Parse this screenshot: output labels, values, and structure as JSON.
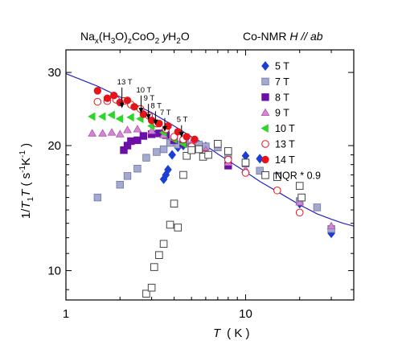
{
  "chart_data": {
    "type": "scatter",
    "title_formula": {
      "parts": [
        "Na",
        "x",
        "(H",
        "3",
        "O)",
        "z",
        "CoO",
        "2",
        " yH",
        "2",
        "O"
      ],
      "roles": [
        "n",
        "sub",
        "n",
        "sub",
        "n",
        "sub",
        "n",
        "sub",
        "n",
        "sub",
        "n"
      ]
    },
    "subtitle_main": "Co-NMR  ",
    "subtitle_field": "H // ab",
    "xlabel_var": "T",
    "xlabel_unit": "( K )",
    "ylabel_parts": {
      "prefix": "1/",
      "T": "T",
      "one": "1",
      "T2": "T",
      "open": " ( s",
      "exp1": "-1",
      "K": "K",
      "exp2": "-1",
      "close": " )"
    },
    "x_scale": "log",
    "y_scale": "log",
    "xlim": [
      1,
      40
    ],
    "ylim": [
      8.5,
      34
    ],
    "x_ticks": [
      1,
      10
    ],
    "x_tick_labels": [
      "1",
      "10"
    ],
    "y_ticks": [
      10,
      20,
      30
    ],
    "y_tick_labels": [
      "10",
      "20",
      "30"
    ],
    "legend_position": "top-right",
    "series": [
      {
        "name": "5 T",
        "marker": "diamond",
        "color": "#1a3fd6",
        "filled": true,
        "points": [
          [
            3.5,
            16.6
          ],
          [
            3.6,
            17.0
          ],
          [
            3.7,
            17.5
          ],
          [
            3.9,
            19.0
          ],
          [
            4.2,
            19.8
          ],
          [
            4.5,
            20.0
          ],
          [
            5.0,
            20.0
          ],
          [
            5.5,
            20.1
          ],
          [
            6.0,
            19.9
          ],
          [
            10.0,
            18.9
          ],
          [
            12.0,
            18.6
          ],
          [
            20.0,
            14.5
          ],
          [
            30.0,
            12.3
          ]
        ]
      },
      {
        "name": "7 T",
        "marker": "square",
        "color": "#a3a9cf",
        "edge": "#6f76a8",
        "filled": true,
        "points": [
          [
            1.5,
            15.0
          ],
          [
            2.0,
            16.1
          ],
          [
            2.2,
            16.9
          ],
          [
            2.5,
            17.6
          ],
          [
            2.8,
            18.7
          ],
          [
            3.2,
            19.3
          ],
          [
            3.5,
            19.6
          ],
          [
            3.8,
            20.3
          ],
          [
            4.2,
            20.1
          ],
          [
            4.6,
            20.4
          ],
          [
            5.0,
            19.9
          ],
          [
            5.5,
            20.1
          ],
          [
            6.0,
            19.9
          ],
          [
            7.0,
            19.8
          ],
          [
            8.0,
            18.8
          ],
          [
            10.0,
            18.1
          ],
          [
            12.0,
            17.4
          ],
          [
            15.0,
            16.9
          ],
          [
            20.0,
            14.7
          ],
          [
            25.0,
            14.2
          ],
          [
            30.0,
            12.6
          ]
        ]
      },
      {
        "name": "8 T",
        "marker": "square",
        "color": "#6a0fa8",
        "filled": true,
        "points": [
          [
            2.1,
            19.5
          ],
          [
            2.2,
            20.0
          ],
          [
            2.3,
            20.5
          ],
          [
            2.5,
            20.6
          ],
          [
            2.7,
            21.1
          ],
          [
            3.0,
            21.3
          ],
          [
            3.3,
            21.4
          ],
          [
            3.6,
            21.2
          ],
          [
            4.0,
            20.6
          ],
          [
            4.5,
            20.2
          ],
          [
            5.0,
            19.7
          ],
          [
            6.0,
            19.0
          ],
          [
            8.0,
            17.9
          ]
        ]
      },
      {
        "name": "9 T",
        "marker": "triangle",
        "color": "#d784d7",
        "edge": "#a95aa9",
        "filled": true,
        "points": [
          [
            1.4,
            21.4
          ],
          [
            1.6,
            21.4
          ],
          [
            1.8,
            21.5
          ],
          [
            2.0,
            21.3
          ],
          [
            2.2,
            21.8
          ],
          [
            2.5,
            21.9
          ],
          [
            3.0,
            21.7
          ],
          [
            3.5,
            21.2
          ],
          [
            4.0,
            20.9
          ],
          [
            5.0,
            20.3
          ],
          [
            6.0,
            19.5
          ],
          [
            8.0,
            18.2
          ],
          [
            10.0,
            17.5
          ],
          [
            20.0,
            14.6
          ],
          [
            30.0,
            12.8
          ]
        ]
      },
      {
        "name": "10 T",
        "marker": "triangle-left",
        "color": "#2dd628",
        "filled": true,
        "points": [
          [
            1.4,
            23.5
          ],
          [
            1.6,
            23.5
          ],
          [
            1.8,
            23.7
          ],
          [
            2.0,
            23.2
          ],
          [
            2.3,
            23.4
          ],
          [
            2.6,
            23.2
          ],
          [
            3.0,
            22.3
          ],
          [
            3.5,
            21.5
          ],
          [
            4.0,
            20.7
          ],
          [
            4.5,
            20.2
          ]
        ]
      },
      {
        "name": "13 T",
        "marker": "circle",
        "color": "#e3141a",
        "filled": false,
        "points": [
          [
            1.5,
            25.5
          ],
          [
            1.7,
            25.6
          ],
          [
            1.9,
            25.8
          ],
          [
            2.1,
            25.6
          ],
          [
            2.3,
            25.1
          ],
          [
            2.6,
            24.5
          ],
          [
            2.9,
            23.6
          ],
          [
            3.2,
            22.6
          ],
          [
            3.6,
            21.9
          ],
          [
            4.0,
            21.0
          ],
          [
            4.5,
            20.7
          ],
          [
            5.0,
            19.9
          ],
          [
            6.0,
            19.1
          ],
          [
            8.0,
            18.5
          ],
          [
            10.0,
            17.2
          ],
          [
            15.0,
            15.6
          ],
          [
            20.0,
            13.8
          ]
        ]
      },
      {
        "name": "14 T",
        "marker": "circle",
        "color": "#e3141a",
        "filled": true,
        "points": [
          [
            1.5,
            27.1
          ],
          [
            1.7,
            26.0
          ],
          [
            1.85,
            26.4
          ],
          [
            2.0,
            25.4
          ],
          [
            2.2,
            25.7
          ],
          [
            2.4,
            24.8
          ],
          [
            2.7,
            23.8
          ],
          [
            3.0,
            23.0
          ],
          [
            3.3,
            22.6
          ],
          [
            3.7,
            22.3
          ],
          [
            4.2,
            21.6
          ],
          [
            4.7,
            21.0
          ],
          [
            5.2,
            20.7
          ]
        ]
      },
      {
        "name": "NQR * 0.9",
        "marker": "square",
        "color": "#444444",
        "filled": false,
        "points": [
          [
            2.8,
            8.8
          ],
          [
            3.0,
            9.1
          ],
          [
            3.1,
            10.2
          ],
          [
            3.3,
            10.9
          ],
          [
            3.5,
            11.6
          ],
          [
            3.8,
            12.9
          ],
          [
            4.0,
            14.5
          ],
          [
            4.2,
            12.7
          ],
          [
            4.5,
            17.0
          ],
          [
            4.7,
            18.9
          ],
          [
            5.0,
            19.5
          ],
          [
            5.5,
            19.6
          ],
          [
            5.8,
            18.8
          ],
          [
            6.2,
            19.0
          ],
          [
            7.0,
            20.2
          ],
          [
            8.0,
            19.4
          ],
          [
            10.0,
            18.2
          ],
          [
            15.0,
            16.8
          ],
          [
            20.0,
            16.0
          ],
          [
            20.5,
            15.0
          ]
        ]
      }
    ],
    "fit_curve": {
      "color": "#2424c8",
      "points": [
        [
          1.0,
          29.8
        ],
        [
          1.5,
          27.8
        ],
        [
          2.0,
          26.2
        ],
        [
          3.0,
          24.0
        ],
        [
          4.0,
          22.3
        ],
        [
          5.0,
          21.0
        ],
        [
          6.0,
          20.0
        ],
        [
          7.0,
          19.1
        ],
        [
          8.0,
          18.4
        ],
        [
          10.0,
          17.3
        ],
        [
          12.0,
          16.4
        ],
        [
          15.0,
          15.5
        ],
        [
          20.0,
          14.4
        ],
        [
          25.0,
          13.7
        ],
        [
          30.0,
          13.3
        ],
        [
          35.0,
          13.0
        ],
        [
          40.0,
          12.8
        ]
      ]
    },
    "arrows": [
      {
        "label": "13 T",
        "x": 2.05,
        "y_tail": 27.6,
        "y_head": 24.6
      },
      {
        "label": "10 T",
        "x": 2.62,
        "y_tail": 26.4,
        "y_head": 23.9
      },
      {
        "label": "9 T",
        "x": 2.88,
        "y_tail": 25.2,
        "y_head": 23.1
      },
      {
        "label": "8 T",
        "x": 3.15,
        "y_tail": 24.2,
        "y_head": 22.4
      },
      {
        "label": "7 T",
        "x": 3.55,
        "y_tail": 23.3,
        "y_head": 21.6
      },
      {
        "label": "5 T",
        "x": 4.4,
        "y_tail": 22.4,
        "y_head": 20.9
      }
    ]
  }
}
